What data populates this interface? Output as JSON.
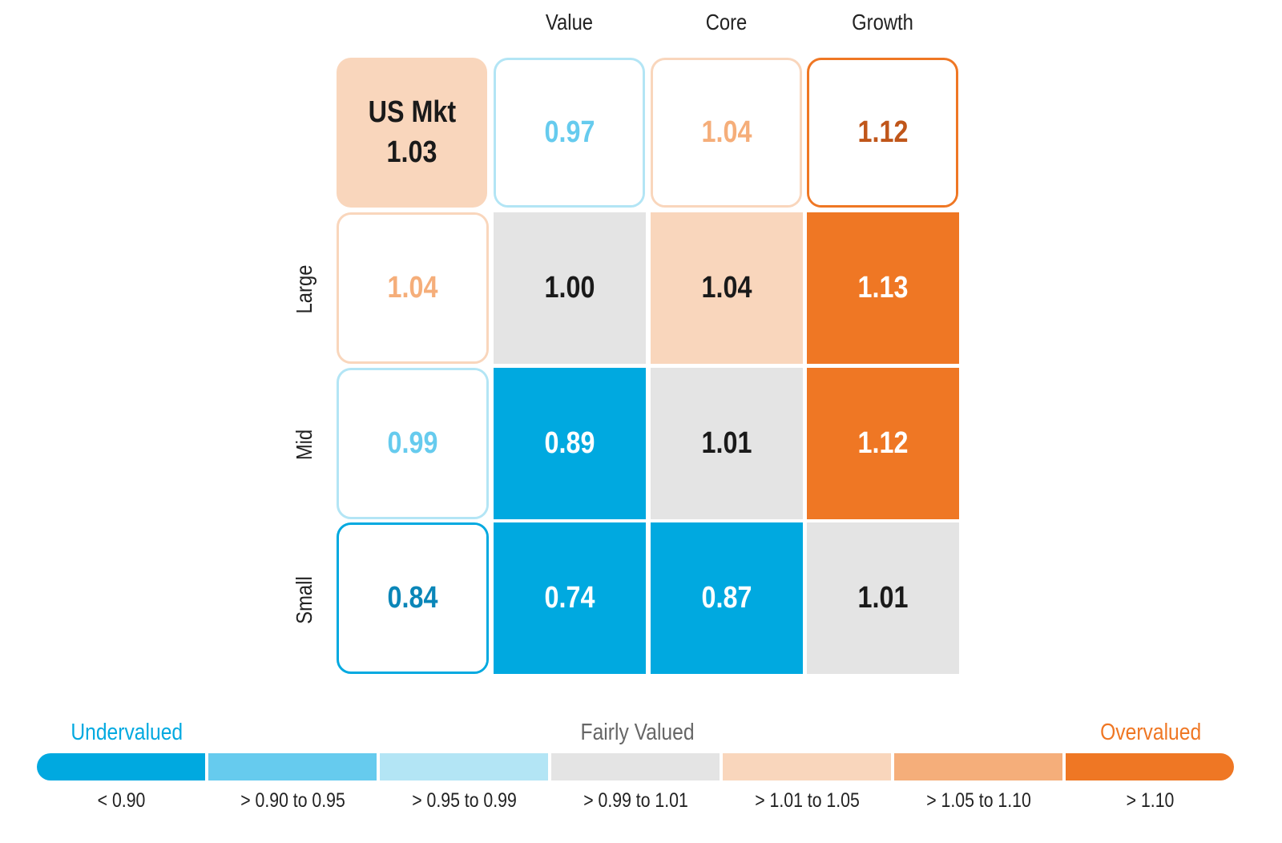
{
  "chart_data": {
    "type": "heatmap",
    "columns": [
      "Value",
      "Core",
      "Growth"
    ],
    "rows": [
      "Large",
      "Mid",
      "Small"
    ],
    "market": {
      "label": "US Mkt",
      "value": "1.03"
    },
    "column_totals": [
      "0.97",
      "1.04",
      "1.12"
    ],
    "row_totals": [
      "1.04",
      "0.99",
      "0.84"
    ],
    "values": [
      [
        "1.00",
        "1.04",
        "1.13"
      ],
      [
        "0.89",
        "1.01",
        "1.12"
      ],
      [
        "0.74",
        "0.87",
        "1.01"
      ]
    ],
    "legend": {
      "left_title": "Undervalued",
      "center_title": "Fairly Valued",
      "right_title": "Overvalued",
      "bins": [
        {
          "label": "< 0.90",
          "color": "#00a9e0"
        },
        {
          "label": "> 0.90 to 0.95",
          "color": "#66cbee"
        },
        {
          "label": "> 0.95 to 0.99",
          "color": "#b3e5f5"
        },
        {
          "label": "> 0.99 to 1.01",
          "color": "#e4e4e4"
        },
        {
          "label": "> 1.01 to 1.05",
          "color": "#f9d6bc"
        },
        {
          "label": "> 1.05 to 1.10",
          "color": "#f5ae7a"
        },
        {
          "label": "> 1.10",
          "color": "#ef7724"
        }
      ]
    }
  }
}
